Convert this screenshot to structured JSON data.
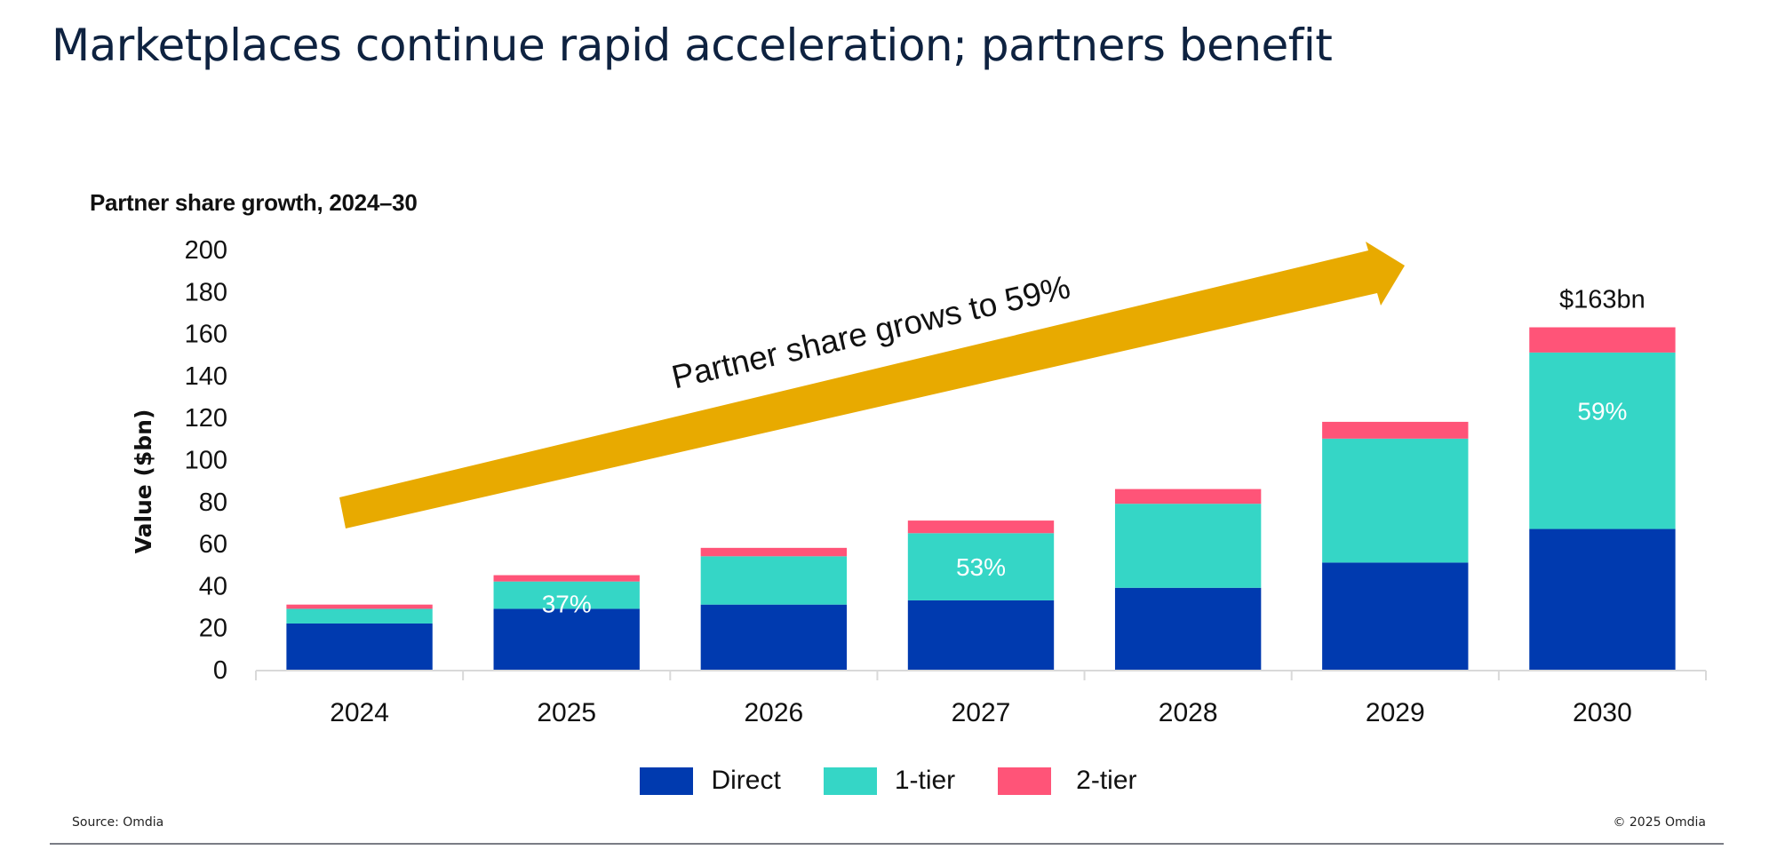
{
  "slide": {
    "title": "Marketplaces continue rapid acceleration; partners benefit",
    "source": "Source: Omdia",
    "copyright": "© 2025 Omdia"
  },
  "colors": {
    "direct": "#003AAF",
    "tier1": "#35D6C6",
    "tier2": "#FF5478",
    "arrow": "#E8AA00",
    "title": "#0E2240"
  },
  "chart_data": {
    "type": "bar",
    "stacked": true,
    "title": "Partner share growth, 2024–30",
    "xlabel": "",
    "ylabel": "Value ($bn)",
    "ylim": [
      0,
      200
    ],
    "yticks": [
      0,
      20,
      40,
      60,
      80,
      100,
      120,
      140,
      160,
      180,
      200
    ],
    "grid": false,
    "categories": [
      "2024",
      "2025",
      "2026",
      "2027",
      "2028",
      "2029",
      "2030"
    ],
    "series": [
      {
        "name": "Direct",
        "values": [
          22,
          29,
          31,
          33,
          39,
          51,
          67
        ]
      },
      {
        "name": "1-tier",
        "values": [
          7,
          13,
          23,
          32,
          40,
          59,
          84
        ]
      },
      {
        "name": "2-tier",
        "values": [
          2,
          3,
          4,
          6,
          7,
          8,
          12
        ]
      }
    ],
    "annotations": {
      "share_labels": [
        {
          "category": "2025",
          "text": "37%"
        },
        {
          "category": "2027",
          "text": "53%"
        },
        {
          "category": "2030",
          "text": "59%"
        }
      ],
      "total_label": {
        "category": "2030",
        "text": "$163bn"
      },
      "arrow_text": "Partner share grows to 59%"
    },
    "legend": {
      "placement": "bottom",
      "entries": [
        "Direct",
        "1-tier",
        "2-tier"
      ]
    }
  }
}
